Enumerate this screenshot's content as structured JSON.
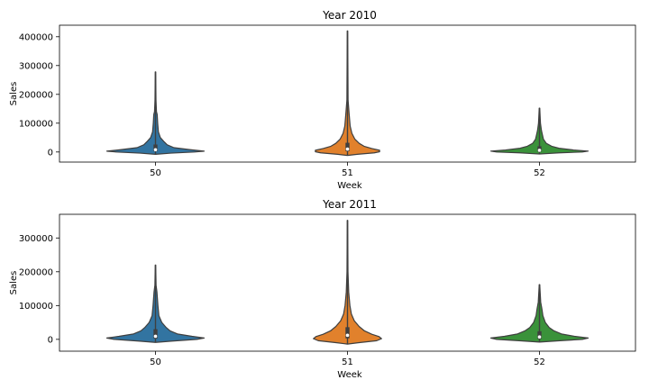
{
  "chart_data": [
    {
      "type": "violin",
      "title": "Year 2010",
      "xlabel": "Week",
      "ylabel": "Sales",
      "categories": [
        "50",
        "51",
        "52"
      ],
      "ylim": [
        -35000,
        440000
      ],
      "yticks": [
        0,
        100000,
        200000,
        300000,
        400000
      ],
      "ytick_labels": [
        "0",
        "100000",
        "200000",
        "300000",
        "400000"
      ],
      "colors": [
        "#3274a1",
        "#e1812c",
        "#3a923a"
      ],
      "violins": [
        {
          "category": "50",
          "min": -8000,
          "max": 278000,
          "q1": 2500,
          "median": 8000,
          "q3": 26000,
          "widths": [
            [
              -8000,
              0.0
            ],
            [
              -4000,
              0.32
            ],
            [
              0,
              0.8
            ],
            [
              3000,
              1.0
            ],
            [
              8000,
              0.72
            ],
            [
              15000,
              0.38
            ],
            [
              25000,
              0.24
            ],
            [
              35000,
              0.18
            ],
            [
              50000,
              0.1
            ],
            [
              70000,
              0.06
            ],
            [
              100000,
              0.045
            ],
            [
              130000,
              0.035
            ],
            [
              140000,
              0.02
            ],
            [
              180000,
              0.01
            ],
            [
              278000,
              0.004
            ]
          ]
        },
        {
          "category": "51",
          "min": -12000,
          "max": 420000,
          "q1": 3000,
          "median": 10000,
          "q3": 32000,
          "widths": [
            [
              -12000,
              0.0
            ],
            [
              -8000,
              0.2
            ],
            [
              -3000,
              0.55
            ],
            [
              1000,
              0.66
            ],
            [
              6000,
              0.66
            ],
            [
              12000,
              0.5
            ],
            [
              20000,
              0.34
            ],
            [
              30000,
              0.24
            ],
            [
              45000,
              0.15
            ],
            [
              65000,
              0.09
            ],
            [
              90000,
              0.055
            ],
            [
              130000,
              0.035
            ],
            [
              180000,
              0.012
            ],
            [
              420000,
              0.004
            ]
          ]
        },
        {
          "category": "52",
          "min": -7000,
          "max": 152000,
          "q1": 1500,
          "median": 6000,
          "q3": 20000,
          "widths": [
            [
              -7000,
              0.0
            ],
            [
              -3000,
              0.4
            ],
            [
              0,
              0.88
            ],
            [
              3000,
              1.0
            ],
            [
              7000,
              0.7
            ],
            [
              13000,
              0.4
            ],
            [
              20000,
              0.25
            ],
            [
              30000,
              0.14
            ],
            [
              45000,
              0.08
            ],
            [
              60000,
              0.06
            ],
            [
              75000,
              0.04
            ],
            [
              100000,
              0.02
            ],
            [
              152000,
              0.005
            ]
          ]
        }
      ]
    },
    {
      "type": "violin",
      "title": "Year 2011",
      "xlabel": "Week",
      "ylabel": "Sales",
      "categories": [
        "50",
        "51",
        "52"
      ],
      "ylim": [
        -35000,
        370000
      ],
      "yticks": [
        0,
        100000,
        200000,
        300000
      ],
      "ytick_labels": [
        "0",
        "100000",
        "200000",
        "300000"
      ],
      "colors": [
        "#3274a1",
        "#e1812c",
        "#3a923a"
      ],
      "violins": [
        {
          "category": "50",
          "min": -9000,
          "max": 220000,
          "q1": 2500,
          "median": 9000,
          "q3": 30000,
          "widths": [
            [
              -9000,
              0.0
            ],
            [
              -5000,
              0.35
            ],
            [
              0,
              0.85
            ],
            [
              4000,
              1.0
            ],
            [
              9000,
              0.75
            ],
            [
              16000,
              0.45
            ],
            [
              25000,
              0.3
            ],
            [
              35000,
              0.22
            ],
            [
              50000,
              0.13
            ],
            [
              70000,
              0.07
            ],
            [
              100000,
              0.05
            ],
            [
              140000,
              0.03
            ],
            [
              160000,
              0.012
            ],
            [
              220000,
              0.004
            ]
          ]
        },
        {
          "category": "51",
          "min": -14000,
          "max": 352000,
          "q1": 3000,
          "median": 12000,
          "q3": 36000,
          "widths": [
            [
              -14000,
              0.0
            ],
            [
              -10000,
              0.22
            ],
            [
              -4000,
              0.6
            ],
            [
              2000,
              0.7
            ],
            [
              8000,
              0.65
            ],
            [
              15000,
              0.5
            ],
            [
              25000,
              0.35
            ],
            [
              38000,
              0.24
            ],
            [
              55000,
              0.14
            ],
            [
              75000,
              0.08
            ],
            [
              100000,
              0.05
            ],
            [
              140000,
              0.025
            ],
            [
              200000,
              0.01
            ],
            [
              352000,
              0.004
            ]
          ]
        },
        {
          "category": "52",
          "min": -8000,
          "max": 162000,
          "q1": 1500,
          "median": 7000,
          "q3": 24000,
          "widths": [
            [
              -8000,
              0.0
            ],
            [
              -4000,
              0.42
            ],
            [
              0,
              0.88
            ],
            [
              4000,
              1.0
            ],
            [
              9000,
              0.72
            ],
            [
              16000,
              0.45
            ],
            [
              25000,
              0.3
            ],
            [
              35000,
              0.2
            ],
            [
              50000,
              0.12
            ],
            [
              70000,
              0.07
            ],
            [
              90000,
              0.05
            ],
            [
              110000,
              0.025
            ],
            [
              162000,
              0.005
            ]
          ]
        }
      ]
    }
  ]
}
